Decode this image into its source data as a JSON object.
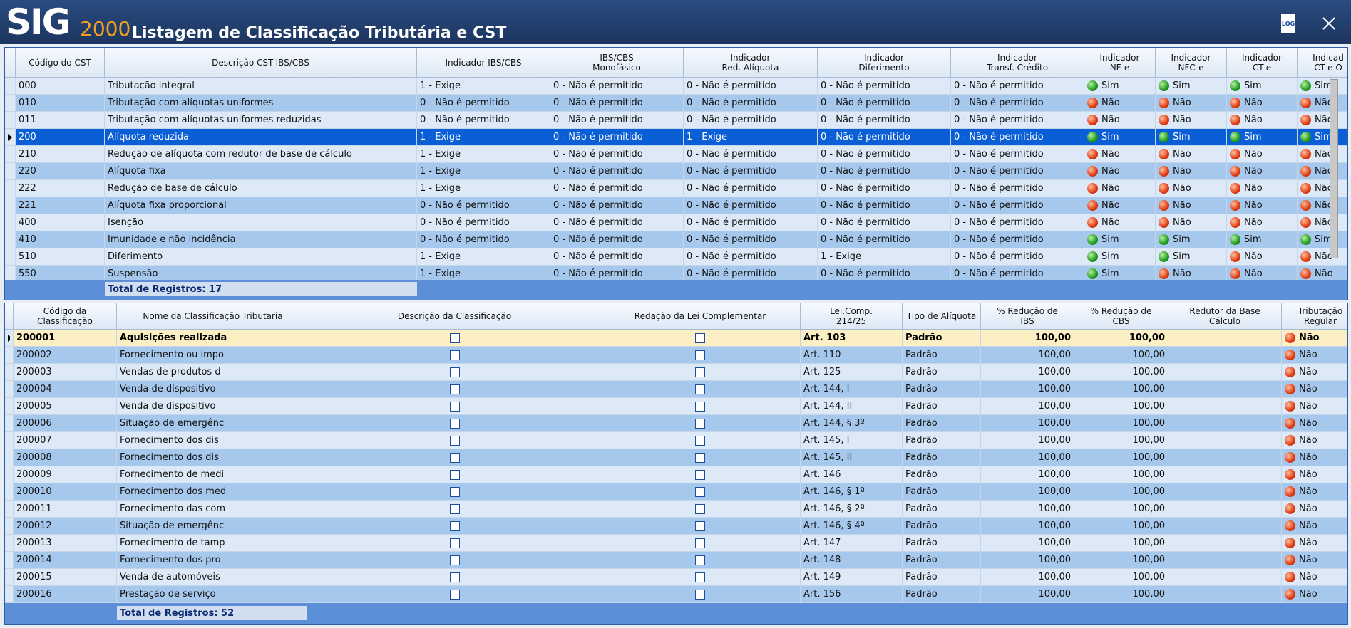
{
  "header": {
    "logo": "SIG",
    "logo_number": "2000",
    "title": "Listagem de Classificação Tributária e CST",
    "log_icon": "LOG"
  },
  "cst_table": {
    "columns": [
      "Código do CST",
      "Descrição CST-IBS/CBS",
      "Indicador IBS/CBS",
      "IBS/CBS\nMonofásico",
      "Indicador\nRed. Alíquota",
      "Indicador\nDiferimento",
      "Indicador\nTransf. Crédito",
      "Indicador\nNF-e",
      "Indicador\nNFC-e",
      "Indicador\nCT-e",
      "Indicad\nCT-e O"
    ],
    "rows": [
      [
        "000",
        "Tributação integral",
        "1 - Exige",
        "0 - Não é permitido",
        "0 - Não é permitido",
        "0 - Não é permitido",
        "0 - Não é permitido",
        "Sim",
        "Sim",
        "Sim",
        "Sim"
      ],
      [
        "010",
        "Tributação com alíquotas uniformes",
        "0 - Não é permitido",
        "0 - Não é permitido",
        "0 - Não é permitido",
        "0 - Não é permitido",
        "0 - Não é permitido",
        "Não",
        "Não",
        "Não",
        "Não"
      ],
      [
        "011",
        "Tributação com alíquotas uniformes reduzidas",
        "0 - Não é permitido",
        "0 - Não é permitido",
        "0 - Não é permitido",
        "0 - Não é permitido",
        "0 - Não é permitido",
        "Não",
        "Não",
        "Não",
        "Não"
      ],
      [
        "200",
        "Alíquota reduzida",
        "1 - Exige",
        "0 - Não é permitido",
        "1 - Exige",
        "0 - Não é permitido",
        "0 - Não é permitido",
        "Sim",
        "Sim",
        "Sim",
        "Sim"
      ],
      [
        "210",
        "Redução de alíquota com redutor de base de cálculo",
        "1 - Exige",
        "0 - Não é permitido",
        "0 - Não é permitido",
        "0 - Não é permitido",
        "0 - Não é permitido",
        "Não",
        "Não",
        "Não",
        "Não"
      ],
      [
        "220",
        "Alíquota fixa",
        "1 - Exige",
        "0 - Não é permitido",
        "0 - Não é permitido",
        "0 - Não é permitido",
        "0 - Não é permitido",
        "Não",
        "Não",
        "Não",
        "Não"
      ],
      [
        "222",
        "Redução de base de cálculo",
        "1 - Exige",
        "0 - Não é permitido",
        "0 - Não é permitido",
        "0 - Não é permitido",
        "0 - Não é permitido",
        "Não",
        "Não",
        "Não",
        "Não"
      ],
      [
        "221",
        "Alíquota fixa proporcional",
        "0 - Não é permitido",
        "0 - Não é permitido",
        "0 - Não é permitido",
        "0 - Não é permitido",
        "0 - Não é permitido",
        "Não",
        "Não",
        "Não",
        "Não"
      ],
      [
        "400",
        "Isenção",
        "0 - Não é permitido",
        "0 - Não é permitido",
        "0 - Não é permitido",
        "0 - Não é permitido",
        "0 - Não é permitido",
        "Não",
        "Não",
        "Não",
        "Não"
      ],
      [
        "410",
        "Imunidade e não incidência",
        "0 - Não é permitido",
        "0 - Não é permitido",
        "0 - Não é permitido",
        "0 - Não é permitido",
        "0 - Não é permitido",
        "Sim",
        "Sim",
        "Sim",
        "Sim"
      ],
      [
        "510",
        "Diferimento",
        "1 - Exige",
        "0 - Não é permitido",
        "0 - Não é permitido",
        "1 - Exige",
        "0 - Não é permitido",
        "Sim",
        "Sim",
        "Não",
        "Não"
      ],
      [
        "550",
        "Suspensão",
        "1 - Exige",
        "0 - Não é permitido",
        "0 - Não é permitido",
        "0 - Não é permitido",
        "0 - Não é permitido",
        "Sim",
        "Não",
        "Não",
        "Não"
      ]
    ],
    "total": "Total de Registros: 17"
  },
  "class_table": {
    "columns": [
      "Código da\nClassificação",
      "Nome da Classificação Tributaria",
      "Descrição da Classificação",
      "Redação da Lei Complementar",
      "Lei.Comp.\n214/25",
      "Tipo de Alíquota",
      "% Redução de\nIBS",
      "% Redução de\nCBS",
      "Redutor da Base\nCálculo",
      "Tributação\nRegular"
    ],
    "rows": [
      [
        "200001",
        "Aquisições realizada",
        "Art. 103",
        "Padrão",
        "100,00",
        "100,00",
        "Não"
      ],
      [
        "200002",
        "Fornecimento ou impo",
        "Art. 110",
        "Padrão",
        "100,00",
        "100,00",
        "Não"
      ],
      [
        "200003",
        "Vendas de produtos d",
        "Art. 125",
        "Padrão",
        "100,00",
        "100,00",
        "Não"
      ],
      [
        "200004",
        "Venda de dispositivo",
        "Art. 144, I",
        "Padrão",
        "100,00",
        "100,00",
        "Não"
      ],
      [
        "200005",
        "Venda de dispositivo",
        "Art. 144, II",
        "Padrão",
        "100,00",
        "100,00",
        "Não"
      ],
      [
        "200006",
        "Situação de emergênc",
        "Art. 144, § 3º",
        "Padrão",
        "100,00",
        "100,00",
        "Não"
      ],
      [
        "200007",
        "Fornecimento dos dis",
        "Art. 145, I",
        "Padrão",
        "100,00",
        "100,00",
        "Não"
      ],
      [
        "200008",
        "Fornecimento dos dis",
        "Art. 145, II",
        "Padrão",
        "100,00",
        "100,00",
        "Não"
      ],
      [
        "200009",
        "Fornecimento de medi",
        "Art. 146",
        "Padrão",
        "100,00",
        "100,00",
        "Não"
      ],
      [
        "200010",
        "Fornecimento dos med",
        "Art. 146, § 1º",
        "Padrão",
        "100,00",
        "100,00",
        "Não"
      ],
      [
        "200011",
        "Fornecimento das com",
        "Art. 146, § 2º",
        "Padrão",
        "100,00",
        "100,00",
        "Não"
      ],
      [
        "200012",
        "Situação de emergênc",
        "Art. 146, § 4º",
        "Padrão",
        "100,00",
        "100,00",
        "Não"
      ],
      [
        "200013",
        "Fornecimento de tamp",
        "Art. 147",
        "Padrão",
        "100,00",
        "100,00",
        "Não"
      ],
      [
        "200014",
        "Fornecimento dos pro",
        "Art. 148",
        "Padrão",
        "100,00",
        "100,00",
        "Não"
      ],
      [
        "200015",
        "Venda de automóveis",
        "Art. 149",
        "Padrão",
        "100,00",
        "100,00",
        "Não"
      ],
      [
        "200016",
        "Prestação de serviço",
        "Art. 156",
        "Padrão",
        "100,00",
        "100,00",
        "Não"
      ]
    ],
    "total": "Total de Registros: 52"
  }
}
